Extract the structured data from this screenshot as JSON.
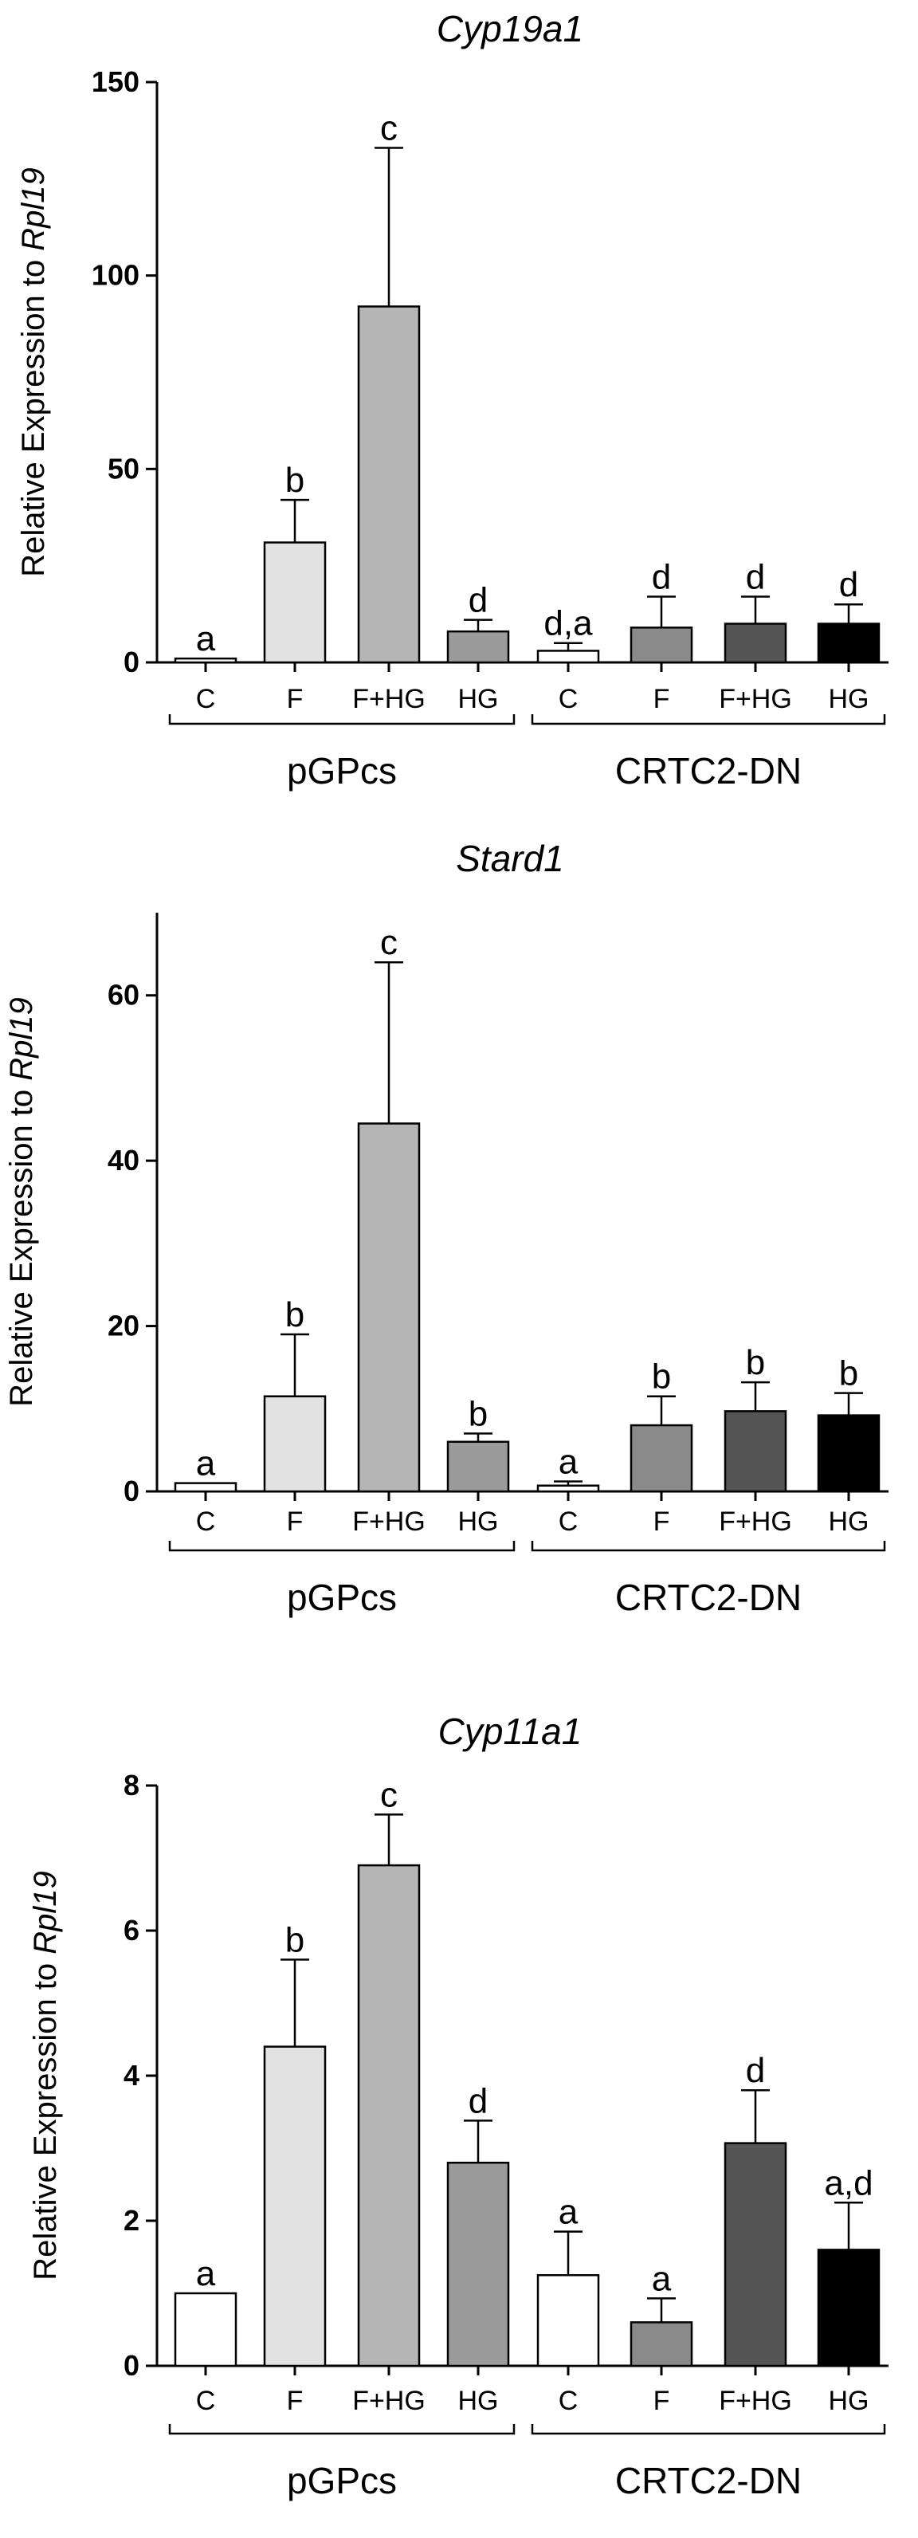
{
  "chart_data": [
    {
      "type": "bar",
      "title": "Cyp19a1",
      "ylabel_prefix": "Relative Expression to ",
      "ylabel_italic": "Rpl19",
      "ylim": [
        0,
        150
      ],
      "yticks": [
        0,
        50,
        100,
        150
      ],
      "categories": [
        "C",
        "F",
        "F+HG",
        "HG",
        "C",
        "F",
        "F+HG",
        "HG"
      ],
      "groups": [
        {
          "label": "pGPcs",
          "from": 0,
          "to": 3
        },
        {
          "label": "CRTC2-DN",
          "from": 4,
          "to": 7
        }
      ],
      "values": [
        1,
        31,
        92,
        8,
        3,
        9,
        10,
        10
      ],
      "errors": [
        0,
        11,
        41,
        3,
        2,
        8,
        7,
        5
      ],
      "significance": [
        "a",
        "b",
        "c",
        "d",
        "d,a",
        "d",
        "d",
        "d"
      ],
      "bar_colors": [
        "#ffffff",
        "#e2e2e2",
        "#b5b5b5",
        "#9b9b9b",
        "#ffffff",
        "#8a8a8a",
        "#555555",
        "#000000"
      ]
    },
    {
      "type": "bar",
      "title": "Stard1",
      "ylabel_prefix": "Relative Expression to ",
      "ylabel_italic": "Rpl19",
      "ylim": [
        0,
        70
      ],
      "yticks": [
        0,
        20,
        40,
        60
      ],
      "categories": [
        "C",
        "F",
        "F+HG",
        "HG",
        "C",
        "F",
        "F+HG",
        "HG"
      ],
      "groups": [
        {
          "label": "pGPcs",
          "from": 0,
          "to": 3
        },
        {
          "label": "CRTC2-DN",
          "from": 4,
          "to": 7
        }
      ],
      "values": [
        1,
        11.5,
        44.5,
        6,
        0.7,
        8,
        9.7,
        9.2
      ],
      "errors": [
        0,
        7.5,
        19.5,
        1,
        0.5,
        3.5,
        3.5,
        2.7
      ],
      "significance": [
        "a",
        "b",
        "c",
        "b",
        "a",
        "b",
        "b",
        "b"
      ],
      "bar_colors": [
        "#ffffff",
        "#e2e2e2",
        "#b5b5b5",
        "#9b9b9b",
        "#ffffff",
        "#8a8a8a",
        "#555555",
        "#000000"
      ]
    },
    {
      "type": "bar",
      "title": "Cyp11a1",
      "ylabel_prefix": "Relative Expression to ",
      "ylabel_italic": "Rpl19",
      "ylim": [
        0,
        8
      ],
      "yticks": [
        0,
        2,
        4,
        6,
        8
      ],
      "categories": [
        "C",
        "F",
        "F+HG",
        "HG",
        "C",
        "F",
        "F+HG",
        "HG"
      ],
      "groups": [
        {
          "label": "pGPcs",
          "from": 0,
          "to": 3
        },
        {
          "label": "CRTC2-DN",
          "from": 4,
          "to": 7
        }
      ],
      "values": [
        1,
        4.4,
        6.9,
        2.8,
        1.25,
        0.6,
        3.07,
        1.6
      ],
      "errors": [
        0,
        1.2,
        0.7,
        0.58,
        0.6,
        0.33,
        0.73,
        0.65
      ],
      "significance": [
        "a",
        "b",
        "c",
        "d",
        "a",
        "a",
        "d",
        "a,d"
      ],
      "bar_colors": [
        "#ffffff",
        "#e2e2e2",
        "#b5b5b5",
        "#9b9b9b",
        "#ffffff",
        "#8a8a8a",
        "#555555",
        "#000000"
      ]
    }
  ]
}
